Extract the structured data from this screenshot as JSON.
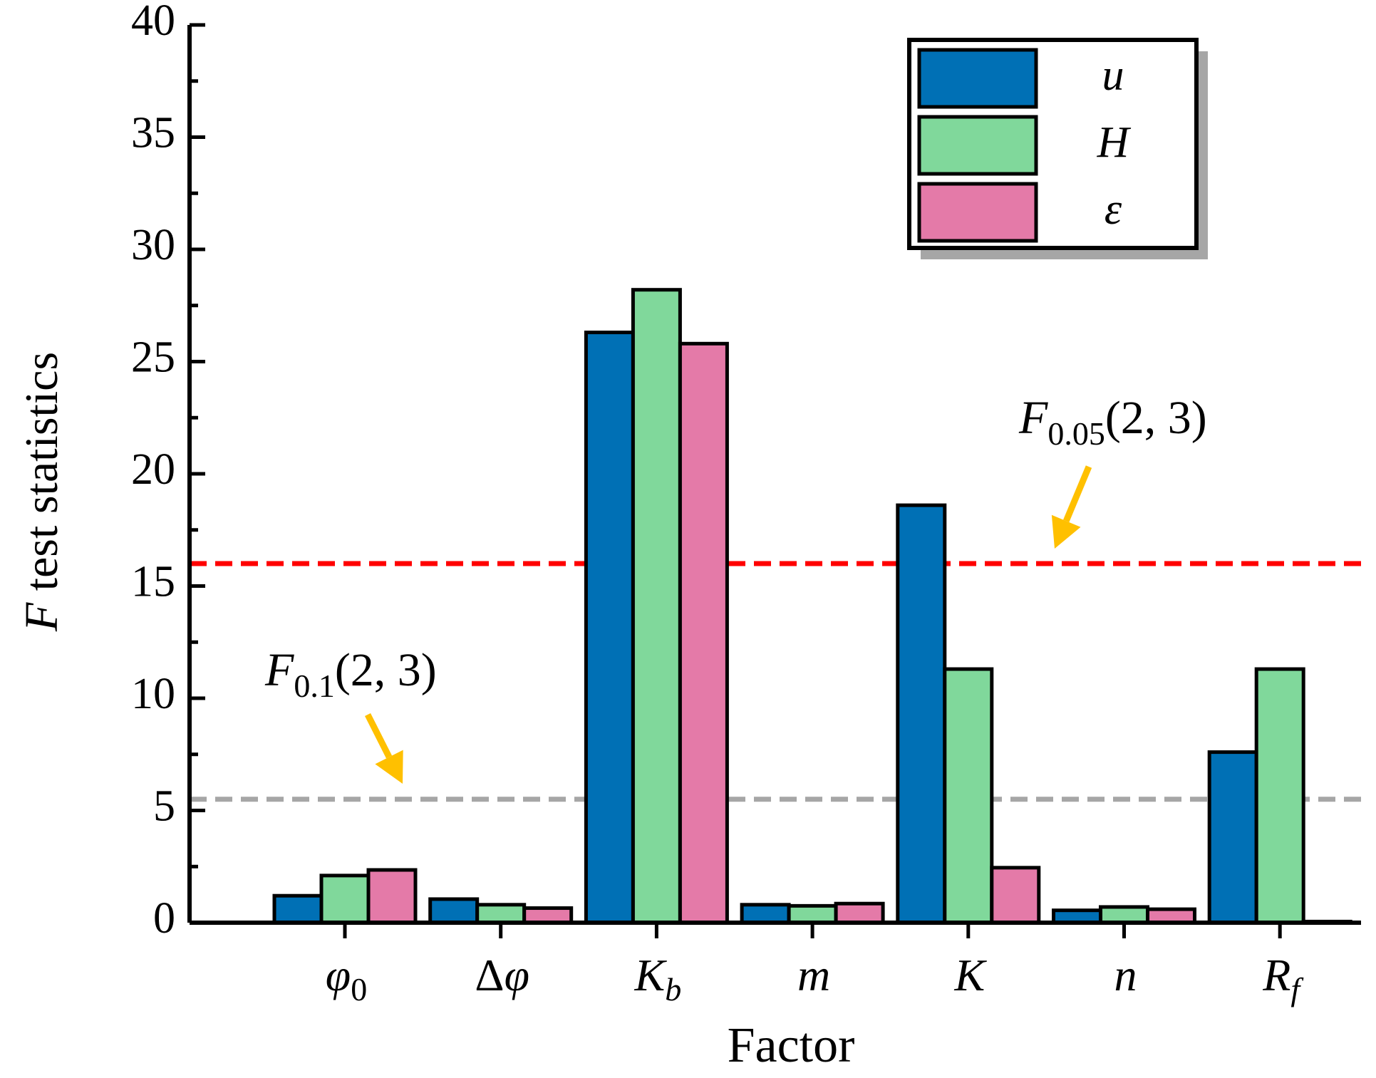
{
  "chart_data": {
    "type": "bar",
    "title": "",
    "xlabel": "Factor",
    "ylabel": {
      "italic": "F",
      "rest": " test statistics"
    },
    "ylim": [
      0,
      40
    ],
    "yticks": [
      "0",
      "5",
      "10",
      "15",
      "20",
      "25",
      "30",
      "35",
      "40"
    ],
    "categories": [
      {
        "base": "φ",
        "sub": "0"
      },
      {
        "base": "Δφ",
        "sub": ""
      },
      {
        "base": "K",
        "sub": "b"
      },
      {
        "base": "m",
        "sub": ""
      },
      {
        "base": "K",
        "sub": ""
      },
      {
        "base": "n",
        "sub": ""
      },
      {
        "base": "R",
        "sub": "f"
      }
    ],
    "series": [
      {
        "name": "u",
        "color": "#0070b5",
        "values": [
          1.2,
          1.05,
          26.3,
          0.8,
          18.6,
          0.55,
          7.6
        ]
      },
      {
        "name": "H",
        "color": "#80d89b",
        "values": [
          2.1,
          0.8,
          28.2,
          0.75,
          11.3,
          0.7,
          11.3
        ]
      },
      {
        "name": "ε",
        "color": "#e47aa8",
        "values": [
          2.35,
          0.65,
          25.8,
          0.85,
          2.45,
          0.6,
          0.05
        ]
      }
    ],
    "reference_lines": [
      {
        "name": "F0.05(2, 3)",
        "value": 16.0,
        "color": "#ff0000",
        "label_main": "F",
        "label_sub": "0.05",
        "label_args": "(2, 3)",
        "arrow_color": "#ffc000"
      },
      {
        "name": "F0.1(2, 3)",
        "value": 5.5,
        "color": "#a6a6a6",
        "label_main": "F",
        "label_sub": "0.1",
        "label_args": "(2, 3)",
        "arrow_color": "#ffc000"
      }
    ],
    "legend_position": "top-right"
  }
}
